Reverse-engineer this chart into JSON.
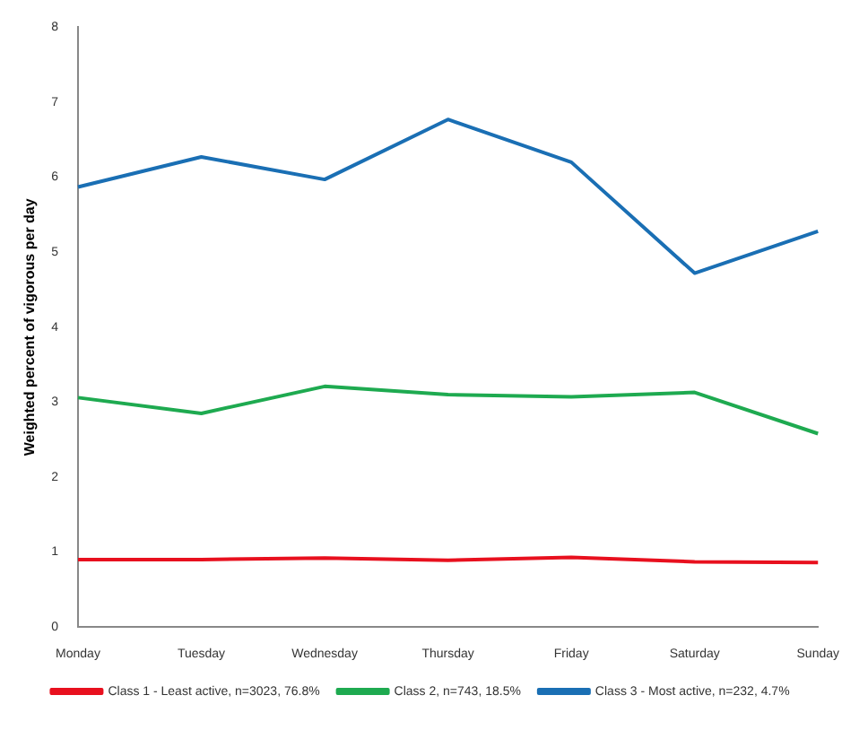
{
  "chart_data": {
    "type": "line",
    "ylabel": "Weighted percent of vigorous per day",
    "categories": [
      "Monday",
      "Tuesday",
      "Wednesday",
      "Thursday",
      "Friday",
      "Saturday",
      "Sunday"
    ],
    "series": [
      {
        "name": "Class 1 - Least active, n=3023, 76.8%",
        "color": "#e8101e",
        "values": [
          0.9,
          0.9,
          0.92,
          0.89,
          0.93,
          0.87,
          0.86
        ]
      },
      {
        "name": "Class 2, n=743, 18.5%",
        "color": "#1eaa50",
        "values": [
          3.06,
          2.85,
          3.21,
          3.1,
          3.07,
          3.13,
          2.58
        ]
      },
      {
        "name": "Class 3 - Most active, n=232, 4.7%",
        "color": "#1a6fb4",
        "values": [
          5.87,
          6.27,
          5.97,
          6.77,
          6.2,
          4.72,
          5.28
        ]
      }
    ],
    "ylim": [
      0,
      8
    ],
    "yticks": [
      0,
      1,
      2,
      3,
      4,
      5,
      6,
      7,
      8
    ],
    "grid": false,
    "legend": "bottom",
    "marker": "none",
    "line_style": "solid"
  }
}
